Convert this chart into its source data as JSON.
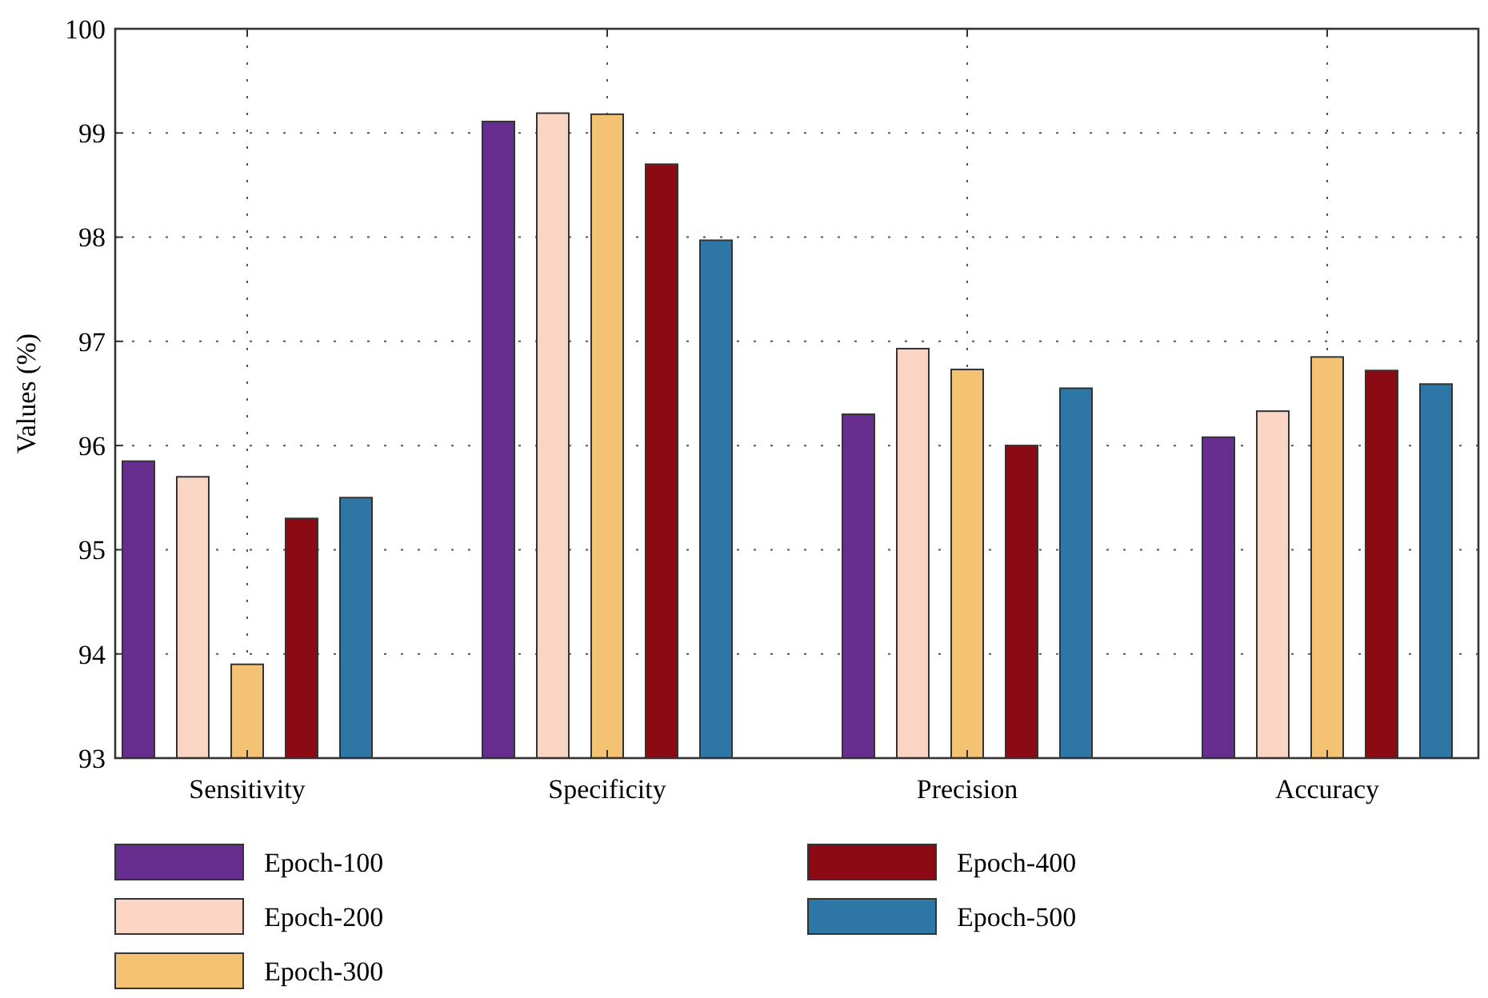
{
  "chart_data": {
    "type": "bar",
    "ylabel": "Values (%)",
    "categories": [
      "Sensitivity",
      "Specificity",
      "Precision",
      "Accuracy"
    ],
    "series": [
      {
        "name": "Epoch-100",
        "color": "#672d8f",
        "values": [
          95.85,
          99.11,
          96.3,
          96.08
        ]
      },
      {
        "name": "Epoch-200",
        "color": "#fad5c3",
        "values": [
          95.7,
          99.19,
          96.93,
          96.33
        ]
      },
      {
        "name": "Epoch-300",
        "color": "#f3c373",
        "values": [
          93.9,
          99.18,
          96.73,
          96.85
        ]
      },
      {
        "name": "Epoch-400",
        "color": "#8c0a14",
        "values": [
          95.3,
          98.7,
          96.0,
          96.72
        ]
      },
      {
        "name": "Epoch-500",
        "color": "#2c77a6",
        "values": [
          95.5,
          97.97,
          96.55,
          96.59
        ]
      }
    ],
    "ylim": [
      93,
      100
    ],
    "yticks": [
      93,
      94,
      95,
      96,
      97,
      98,
      99,
      100
    ],
    "grid": true,
    "legend": "bottom"
  }
}
